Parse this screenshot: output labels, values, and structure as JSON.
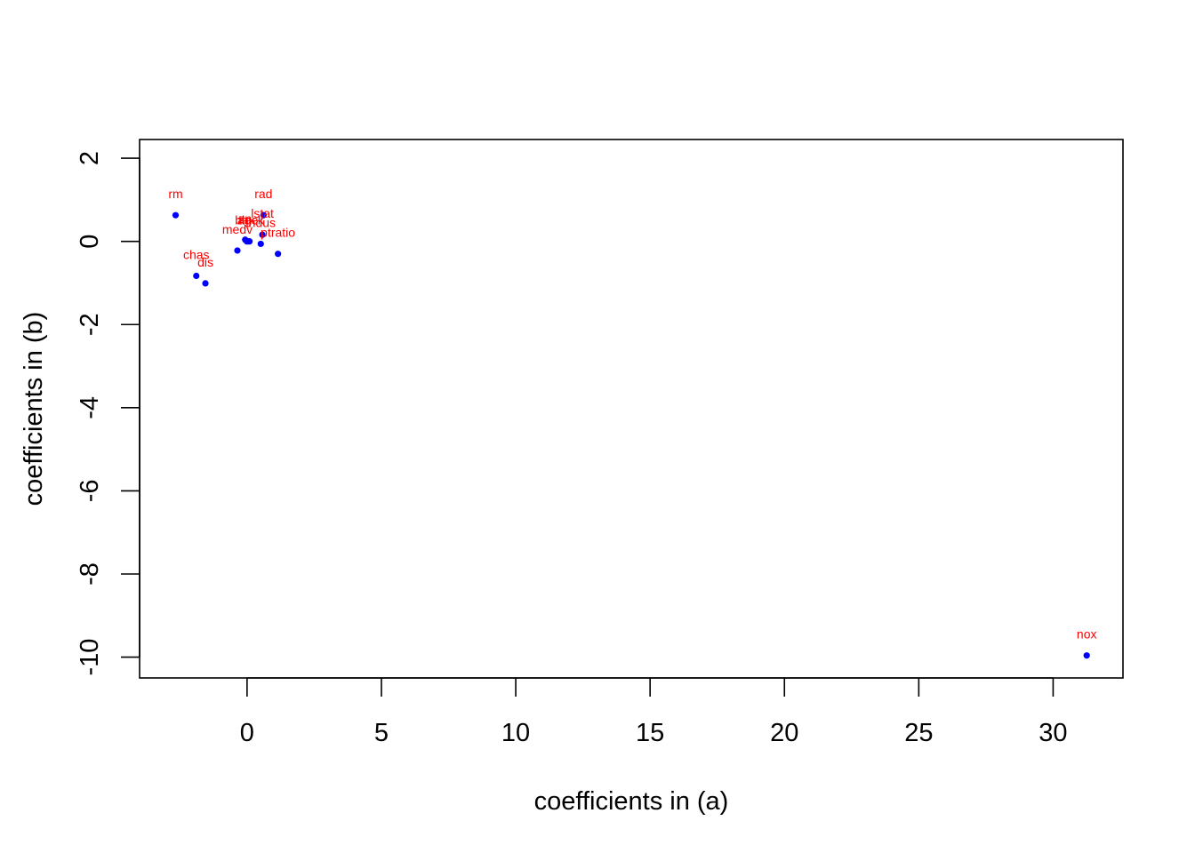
{
  "chart_data": {
    "type": "scatter",
    "title": "",
    "xlabel": "coefficients in (a)",
    "ylabel": "coefficients in (b)",
    "xlim": [
      -4.0,
      32.6
    ],
    "ylim": [
      -10.5,
      2.45
    ],
    "x_ticks": [
      0,
      5,
      10,
      15,
      20,
      25,
      30
    ],
    "y_ticks": [
      -10,
      -8,
      -6,
      -4,
      -2,
      0,
      2
    ],
    "x_tick_labels": [
      "0",
      "5",
      "10",
      "15",
      "20",
      "25",
      "30"
    ],
    "y_tick_labels": [
      "-10",
      "-8",
      "-6",
      "-4",
      "-2",
      "0",
      "2"
    ],
    "grid": false,
    "point_color": "#0000ff",
    "label_color": "#ff0000",
    "points": [
      {
        "label": "rm",
        "x": -2.66,
        "y": 0.63
      },
      {
        "label": "rad",
        "x": 0.61,
        "y": 0.63
      },
      {
        "label": "lstat",
        "x": 0.57,
        "y": 0.16
      },
      {
        "label": "zn",
        "x": -0.07,
        "y": 0.04
      },
      {
        "label": "age",
        "x": 0.03,
        "y": 0.0
      },
      {
        "label": "tax",
        "x": -0.01,
        "y": 0.0
      },
      {
        "label": "black",
        "x": 0.09,
        "y": 0.0
      },
      {
        "label": "indus",
        "x": 0.51,
        "y": -0.06
      },
      {
        "label": "medv",
        "x": -0.36,
        "y": -0.22
      },
      {
        "label": "ptratio",
        "x": 1.15,
        "y": -0.3
      },
      {
        "label": "chas",
        "x": -1.89,
        "y": -0.83
      },
      {
        "label": "dis",
        "x": -1.55,
        "y": -1.01
      },
      {
        "label": "nox",
        "x": 31.25,
        "y": -9.96
      }
    ]
  }
}
